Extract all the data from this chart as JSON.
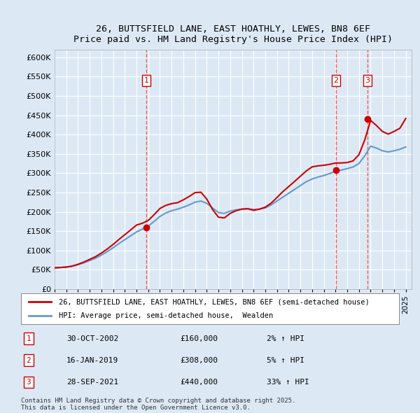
{
  "title": "26, BUTTSFIELD LANE, EAST HOATHLY, LEWES, BN8 6EF",
  "subtitle": "Price paid vs. HM Land Registry's House Price Index (HPI)",
  "ylabel_ticks": [
    "£0",
    "£50K",
    "£100K",
    "£150K",
    "£200K",
    "£250K",
    "£300K",
    "£350K",
    "£400K",
    "£450K",
    "£500K",
    "£550K",
    "£600K"
  ],
  "ytick_values": [
    0,
    50000,
    100000,
    150000,
    200000,
    250000,
    300000,
    350000,
    400000,
    450000,
    500000,
    550000,
    600000
  ],
  "ylim": [
    0,
    620000
  ],
  "xlim_start": 1995.0,
  "xlim_end": 2025.5,
  "bg_color": "#dce9f5",
  "plot_bg_color": "#dce9f5",
  "grid_color": "#ffffff",
  "sale_dates": [
    2002.83,
    2019.04,
    2021.74
  ],
  "sale_prices": [
    160000,
    308000,
    440000
  ],
  "sale_labels": [
    "1",
    "2",
    "3"
  ],
  "sale_date_strs": [
    "30-OCT-2002",
    "16-JAN-2019",
    "28-SEP-2021"
  ],
  "sale_price_strs": [
    "£160,000",
    "£308,000",
    "£440,000"
  ],
  "sale_pct_strs": [
    "2%",
    "5%",
    "33%"
  ],
  "legend_line1": "26, BUTTSFIELD LANE, EAST HOATHLY, LEWES, BN8 6EF (semi-detached house)",
  "legend_line2": "HPI: Average price, semi-detached house,  Wealden",
  "footnote": "Contains HM Land Registry data © Crown copyright and database right 2025.\nThis data is licensed under the Open Government Licence v3.0.",
  "red_color": "#cc0000",
  "blue_color": "#6699cc",
  "dashed_color": "#ff4444",
  "marker_color": "#cc0000"
}
